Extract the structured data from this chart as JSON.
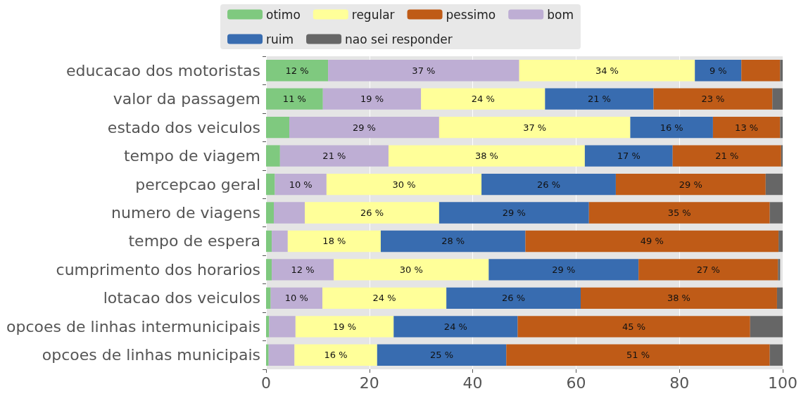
{
  "chart_data": {
    "type": "bar",
    "orientation": "horizontal",
    "stacked": true,
    "categories": [
      "educacao dos motoristas",
      "valor da passagem",
      "estado dos veiculos",
      "tempo de viagem",
      "percepcao geral",
      "numero de viagens",
      "tempo de espera",
      "cumprimento dos horarios",
      "lotacao dos veiculos",
      "opcoes de linhas intermunicipais",
      "opcoes de linhas municipais"
    ],
    "series": [
      {
        "name": "otimo",
        "color": "#7fc97f",
        "values": [
          12,
          11,
          4.5,
          2.7,
          1.7,
          1.5,
          1.1,
          1.1,
          0.9,
          0.6,
          0.5
        ],
        "value_labels": [
          "12 %",
          "11 %",
          null,
          null,
          null,
          null,
          null,
          null,
          null,
          null,
          null
        ]
      },
      {
        "name": "bom",
        "color": "#beaed4",
        "values": [
          37,
          19,
          29,
          21,
          10,
          6,
          3.1,
          12,
          10,
          5.1,
          5
        ],
        "value_labels": [
          "37 %",
          "19 %",
          "29 %",
          "21 %",
          "10 %",
          null,
          null,
          "12 %",
          "10 %",
          null,
          null
        ]
      },
      {
        "name": "regular",
        "color": "#ffff99",
        "values": [
          34,
          24,
          37,
          38,
          30,
          26,
          18,
          30,
          24,
          19,
          16
        ],
        "value_labels": [
          "34 %",
          "24 %",
          "37 %",
          "38 %",
          "30 %",
          "26 %",
          "18 %",
          "30 %",
          "24 %",
          "19 %",
          "16 %"
        ]
      },
      {
        "name": "ruim",
        "color": "#386cb0",
        "values": [
          9,
          21,
          16,
          17,
          26,
          29,
          28,
          29,
          26,
          24,
          25
        ],
        "value_labels": [
          "9 %",
          "21 %",
          "16 %",
          "17 %",
          "26 %",
          "29 %",
          "28 %",
          "29 %",
          "26 %",
          "24 %",
          "25 %"
        ]
      },
      {
        "name": "pessimo",
        "color": "#bf5b17",
        "values": [
          7.5,
          23,
          13,
          21,
          29,
          35,
          49,
          27,
          38,
          45,
          51
        ],
        "value_labels": [
          null,
          "23 %",
          "13 %",
          "21 %",
          "29 %",
          "35 %",
          "49 %",
          "27 %",
          "38 %",
          "45 %",
          "51 %"
        ]
      },
      {
        "name": "nao sei responder",
        "color": "#666666",
        "values": [
          0.5,
          2,
          0.5,
          0.3,
          3.3,
          2.5,
          0.8,
          0.4,
          1.1,
          6.3,
          2.5
        ],
        "value_labels": [
          null,
          null,
          null,
          null,
          null,
          null,
          null,
          null,
          null,
          null,
          null
        ]
      }
    ],
    "xlim": [
      0,
      100
    ],
    "xticks": [
      0,
      20,
      40,
      60,
      80,
      100
    ],
    "grid": "x",
    "legend": "top"
  }
}
